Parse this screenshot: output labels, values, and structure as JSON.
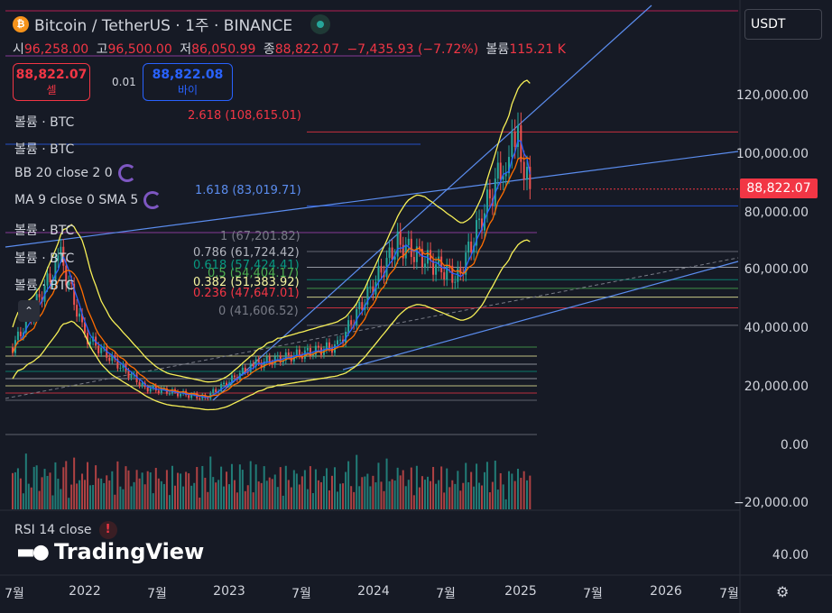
{
  "header": {
    "symbol": "Bitcoin / TetherUS · 1주 · BINANCE",
    "coin_icon": "bitcoin-icon"
  },
  "ohlc": {
    "open_label": "시",
    "open": "96,258.00",
    "high_label": "고",
    "high": "96,500.00",
    "low_label": "저",
    "low": "86,050.99",
    "close_label": "종",
    "close": "88,822.07",
    "change": "−7,435.93 (−7.72%)",
    "volume_label": "볼륨",
    "volume": "115.21 K"
  },
  "trade": {
    "sell_price": "88,822.07",
    "sell_label": "셀",
    "spread": "0.01",
    "buy_price": "88,822.08",
    "buy_label": "바이"
  },
  "indicators": [
    {
      "label": "볼륨 · BTC"
    },
    {
      "label": "볼륨 · BTC"
    },
    {
      "label": "BB 20 close 2 0"
    },
    {
      "label": "MA 9 close 0 SMA 5"
    },
    {
      "label": "볼륨 · BTC"
    },
    {
      "label": "볼륨 · BTC"
    },
    {
      "label": "볼륨 · BTC"
    }
  ],
  "fib_levels": [
    {
      "label": "2.618 (108,615.01)",
      "color": "#f23645",
      "price": 108615.01
    },
    {
      "label": "1.618 (83,019.71)",
      "color": "#2962ff",
      "price": 83019.71
    },
    {
      "label": "1 (67,201.82)",
      "color": "#787b86",
      "price": 67201.82
    },
    {
      "label": "0.786 (61,724.42)",
      "color": "#b2b5be",
      "price": 61724.42
    },
    {
      "label": "0.618 (57,424.41)",
      "color": "#089981",
      "price": 57424.41
    },
    {
      "label": "0.5 (54,404.17)",
      "color": "#4caf50",
      "price": 54404.17
    },
    {
      "label": "0.382 (51,383.92)",
      "color": "#f7f7a0",
      "price": 51383.92
    },
    {
      "label": "0.236 (47,647.01)",
      "color": "#f23645",
      "price": 47647.01
    },
    {
      "label": "0 (41,606.52)",
      "color": "#787b86",
      "price": 41606.52
    }
  ],
  "currency_select": {
    "value": "USDT"
  },
  "price_axis": {
    "ticks": [
      "120,000.00",
      "100,000.00",
      "80,000.00",
      "60,000.00",
      "40,000.00",
      "20,000.00",
      "0.00",
      "−20,000.00"
    ],
    "current_price": "88,822.07",
    "current_price_color": "#f23645"
  },
  "time_axis": {
    "ticks": [
      "7월",
      "2022",
      "7월",
      "2023",
      "7월",
      "2024",
      "7월",
      "2025",
      "7월",
      "2026",
      "7월"
    ]
  },
  "rsi": {
    "label": "RSI 14 close",
    "tick": "40.00"
  },
  "branding": {
    "name": "TradingView"
  },
  "chart_data": {
    "type": "candlestick",
    "interval": "1W",
    "series_sample": [
      {
        "date": "2021-07",
        "close": 34000
      },
      {
        "date": "2021-11",
        "close": 65000
      },
      {
        "date": "2022-01",
        "close": 38000
      },
      {
        "date": "2022-06",
        "close": 20000
      },
      {
        "date": "2022-11",
        "close": 16500
      },
      {
        "date": "2023-03",
        "close": 28000
      },
      {
        "date": "2023-10",
        "close": 34500
      },
      {
        "date": "2024-03",
        "close": 70000
      },
      {
        "date": "2024-08",
        "close": 58000
      },
      {
        "date": "2024-12",
        "close": 100000
      },
      {
        "date": "2025-01",
        "close": 105000
      },
      {
        "date": "2025-02",
        "close": 88822.07
      }
    ],
    "y_axis_range": [
      -20000,
      125000
    ]
  }
}
